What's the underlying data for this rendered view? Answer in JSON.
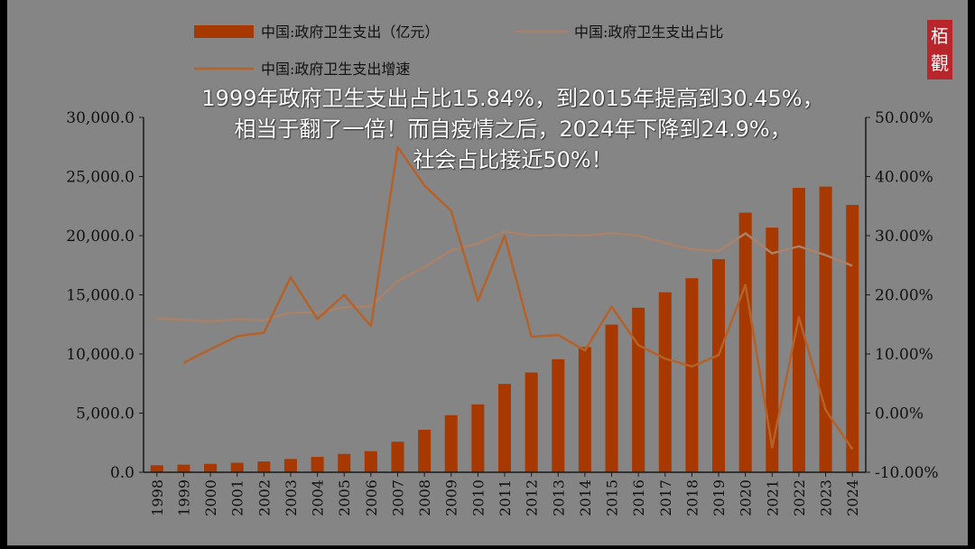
{
  "overlay_text": {
    "line1": "1999年政府卫生支出占比15.84%，到2015年提高到30.45%，",
    "line2": "相当于翻了一倍！而自疫情之后，2024年下降到24.9%，",
    "line3": "社会占比接近50%！"
  },
  "seal": {
    "char1": "栢",
    "char2": "觀"
  },
  "colors": {
    "background": "#858585",
    "bar": "#a63800",
    "share_line": "#a8826a",
    "growth_line": "#b4622a",
    "axis": "#1a1a1a",
    "overlay_text": "#ffffff",
    "seal": "#b8262b"
  },
  "chart_data": {
    "type": "bar",
    "categories": [
      "1998",
      "1999",
      "2000",
      "2001",
      "2002",
      "2003",
      "2004",
      "2005",
      "2006",
      "2007",
      "2008",
      "2009",
      "2010",
      "2011",
      "2012",
      "2013",
      "2014",
      "2015",
      "2016",
      "2017",
      "2018",
      "2019",
      "2020",
      "2021",
      "2022",
      "2023",
      "2024"
    ],
    "series": [
      {
        "name": "中国:政府卫生支出（亿元）",
        "type": "bar",
        "axis": "left",
        "values": [
          590,
          640,
          710,
          800,
          910,
          1120,
          1300,
          1550,
          1780,
          2580,
          3590,
          4820,
          5730,
          7460,
          8430,
          9550,
          10580,
          12480,
          13910,
          15210,
          16400,
          18020,
          21940,
          20680,
          24040,
          24150,
          22600
        ]
      },
      {
        "name": "中国:政府卫生支出占比",
        "type": "line",
        "axis": "right",
        "values": [
          16.0,
          15.8,
          15.5,
          15.9,
          15.7,
          17.0,
          17.0,
          17.9,
          18.1,
          22.3,
          24.7,
          27.5,
          28.7,
          30.7,
          30.0,
          30.1,
          30.0,
          30.45,
          30.0,
          28.8,
          27.7,
          27.4,
          30.4,
          27.0,
          28.2,
          26.7,
          24.9
        ]
      },
      {
        "name": "中国:政府卫生支出增速",
        "type": "line",
        "axis": "right",
        "values": [
          null,
          8.5,
          10.8,
          13.0,
          13.6,
          23.0,
          15.9,
          20.0,
          14.7,
          45.0,
          38.5,
          34.2,
          19.0,
          30.0,
          12.9,
          13.2,
          10.6,
          18.0,
          11.5,
          9.2,
          7.9,
          9.8,
          21.7,
          -5.8,
          16.2,
          0.5,
          -6.1
        ]
      }
    ],
    "y_left": {
      "range": [
        0,
        30000
      ],
      "ticks": [
        "0.0",
        "5,000.0",
        "10,000.0",
        "15,000.0",
        "20,000.0",
        "25,000.0",
        "30,000.0"
      ]
    },
    "y_right": {
      "range": [
        -10,
        50
      ],
      "ticks": [
        "-10.00%",
        "0.00%",
        "10.00%",
        "20.00%",
        "30.00%",
        "40.00%",
        "50.00%"
      ]
    },
    "legend_position": "top",
    "grid": false
  }
}
